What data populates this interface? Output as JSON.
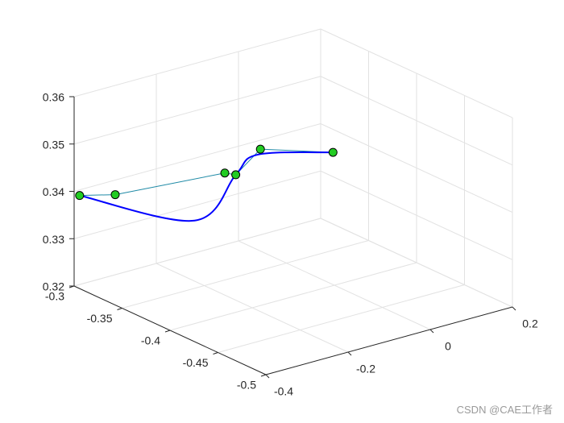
{
  "chart_data": {
    "type": "line",
    "plot_kind": "3d",
    "grid": true,
    "axes": {
      "x": {
        "ticks": [
          "-0.4",
          "-0.2",
          "0",
          "0.2"
        ],
        "values": [
          -0.4,
          -0.2,
          0,
          0.2
        ]
      },
      "y": {
        "ticks": [
          "-0.3",
          "-0.35",
          "-0.4",
          "-0.45",
          "-0.5"
        ],
        "values": [
          -0.3,
          -0.35,
          -0.4,
          -0.45,
          -0.5
        ]
      },
      "z": {
        "ticks": [
          "0.32",
          "0.33",
          "0.34",
          "0.35",
          "0.36"
        ],
        "values": [
          0.32,
          0.33,
          0.34,
          0.35,
          0.36
        ]
      }
    },
    "series": [
      {
        "kind": "control-polygon",
        "color": "#1f8aa6",
        "points": [
          {
            "x": -0.41,
            "y": -0.31,
            "z": 0.3403
          },
          {
            "x": -0.37,
            "y": -0.33,
            "z": 0.3414
          },
          {
            "x": -0.15,
            "y": -0.35,
            "z": 0.3426
          },
          {
            "x": -0.1,
            "y": -0.34,
            "z": 0.3401
          },
          {
            "x": 0.03,
            "y": -0.31,
            "z": 0.3396
          },
          {
            "x": 0.16,
            "y": -0.33,
            "z": 0.3377
          }
        ]
      },
      {
        "kind": "curve",
        "color": "#0000ff",
        "points": [
          {
            "x": -0.41,
            "y": -0.31,
            "z": 0.3403
          },
          {
            "x": -0.2,
            "y": -0.34,
            "z": 0.3328
          },
          {
            "x": -0.1,
            "y": -0.34,
            "z": 0.3401
          },
          {
            "x": 0.0,
            "y": -0.32,
            "z": 0.3401
          },
          {
            "x": 0.16,
            "y": -0.33,
            "z": 0.3377
          }
        ]
      }
    ],
    "marker_color": "#22cc22"
  },
  "watermark": "CSDN @CAE工作者"
}
